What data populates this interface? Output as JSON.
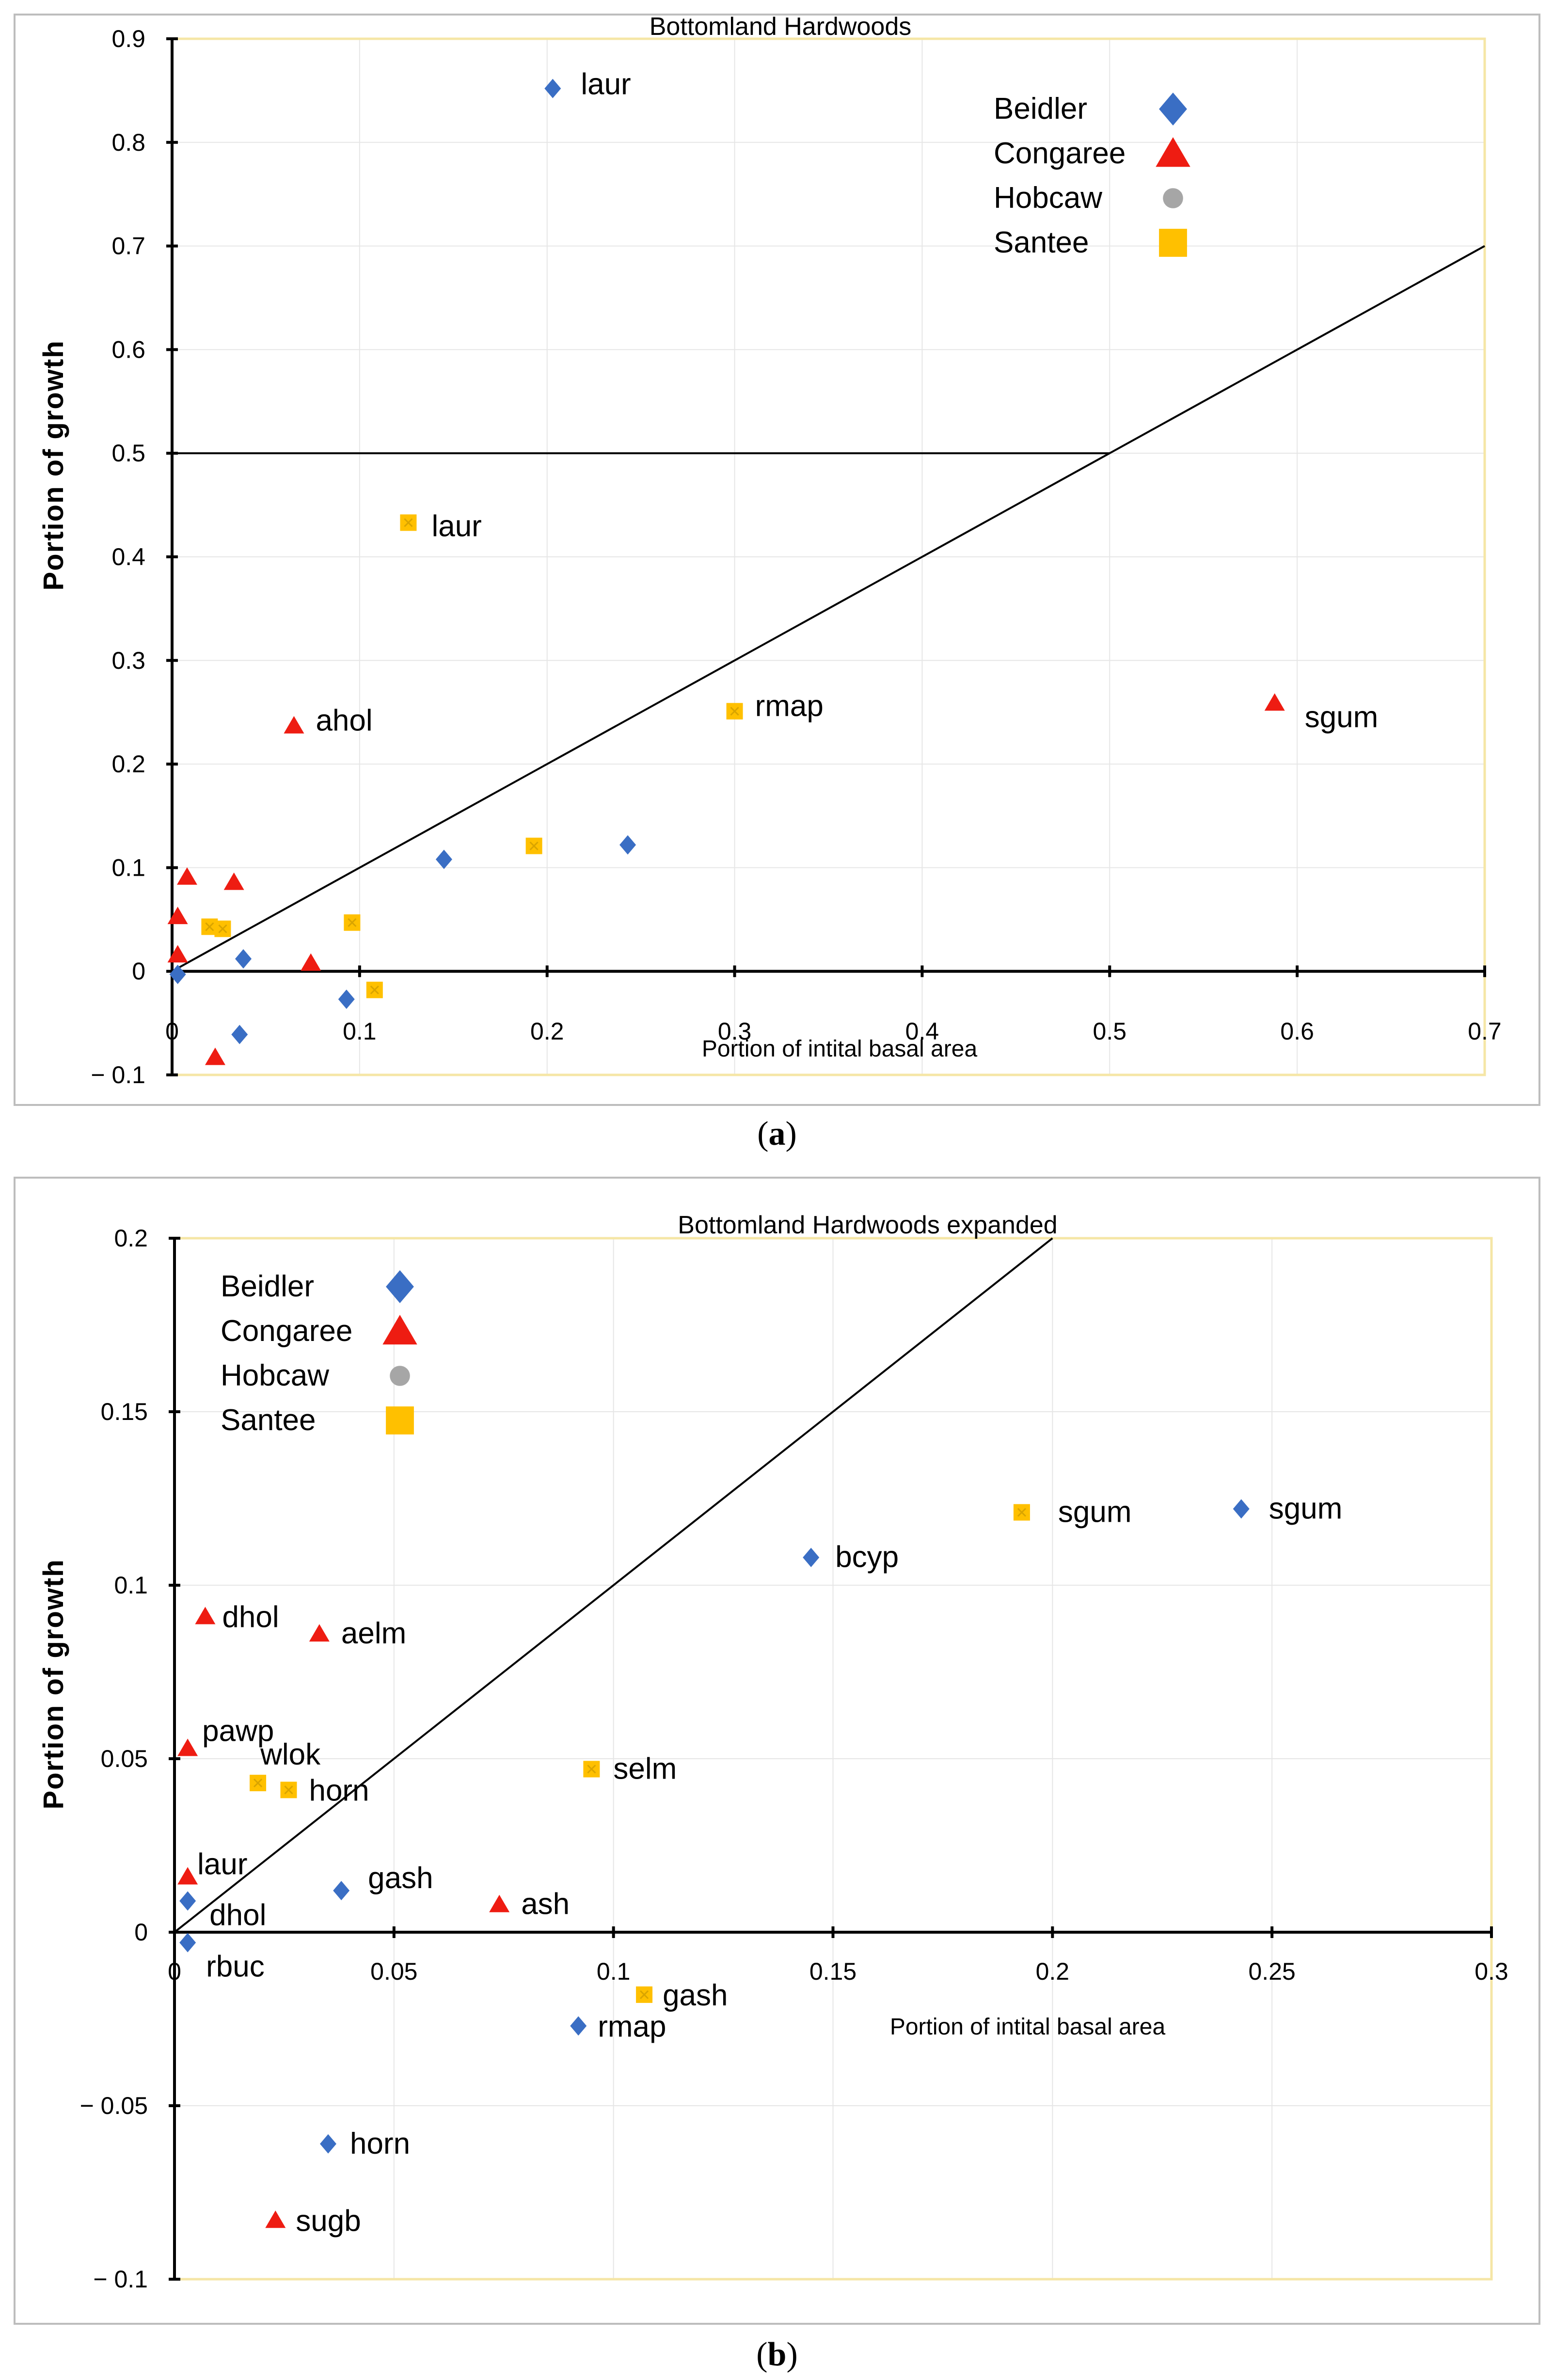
{
  "colors": {
    "Beidler": "#3a6ec4",
    "Congaree": "#ee1c12",
    "Hobcaw": "#a6a6a6",
    "Santee": "#ffc000"
  },
  "chart_data": [
    {
      "type": "scatter",
      "title": "Bottomland Hardwoods",
      "caption_letter": "a",
      "xlabel": "Portion of intital basal area",
      "ylabel": "Portion  of  growth",
      "xlim": [
        0,
        0.7
      ],
      "ylim": [
        -0.1,
        0.9
      ],
      "x_ticks": [
        0,
        0.1,
        0.2,
        0.3,
        0.4,
        0.5,
        0.6,
        0.7
      ],
      "x_tick_labels": [
        "0",
        "0.1",
        "0.2",
        "0.3",
        "0.4",
        "0.5",
        "0.6",
        "0.7"
      ],
      "y_ticks": [
        -0.1,
        0,
        0.1,
        0.2,
        0.3,
        0.4,
        0.5,
        0.6,
        0.7,
        0.8,
        0.9
      ],
      "y_tick_labels": [
        "− 0.1",
        "0",
        "0.1",
        "0.2",
        "0.3",
        "0.4",
        "0.5",
        "0.6",
        "0.7",
        "0.8",
        "0.9"
      ],
      "grid": true,
      "legend": [
        "Beidler",
        "Congaree",
        "Hobcaw",
        "Santee"
      ],
      "legend_position": "top-right",
      "reference_lines": [
        {
          "name": "one-to-one",
          "points": [
            [
              0,
              0
            ],
            [
              0.7,
              0.7
            ]
          ]
        },
        {
          "name": "half-line",
          "points": [
            [
              0,
              0.5
            ],
            [
              0.5,
              0.5
            ]
          ]
        }
      ],
      "series": [
        {
          "name": "Beidler",
          "marker": "diamond",
          "points": [
            {
              "x": 0.203,
              "y": 0.852,
              "label": "laur"
            },
            {
              "x": 0.145,
              "y": 0.108
            },
            {
              "x": 0.243,
              "y": 0.122
            },
            {
              "x": 0.038,
              "y": 0.012
            },
            {
              "x": 0.003,
              "y": -0.003
            },
            {
              "x": 0.093,
              "y": -0.027
            },
            {
              "x": 0.036,
              "y": -0.061
            }
          ]
        },
        {
          "name": "Congaree",
          "marker": "triangle",
          "points": [
            {
              "x": 0.065,
              "y": 0.237,
              "label": "ahol"
            },
            {
              "x": 0.588,
              "y": 0.259,
              "label": "sgum"
            },
            {
              "x": 0.008,
              "y": 0.091
            },
            {
              "x": 0.033,
              "y": 0.086
            },
            {
              "x": 0.003,
              "y": 0.053
            },
            {
              "x": 0.003,
              "y": 0.016
            },
            {
              "x": 0.074,
              "y": 0.008
            },
            {
              "x": 0.023,
              "y": -0.083
            }
          ]
        },
        {
          "name": "Santee",
          "marker": "square",
          "points": [
            {
              "x": 0.126,
              "y": 0.433,
              "label": "laur"
            },
            {
              "x": 0.3,
              "y": 0.251,
              "label": "rmap"
            },
            {
              "x": 0.193,
              "y": 0.121
            },
            {
              "x": 0.096,
              "y": 0.047
            },
            {
              "x": 0.02,
              "y": 0.043
            },
            {
              "x": 0.027,
              "y": 0.041
            },
            {
              "x": 0.108,
              "y": -0.018
            }
          ]
        },
        {
          "name": "Hobcaw",
          "marker": "circle",
          "points": []
        }
      ]
    },
    {
      "type": "scatter",
      "title": "Bottomland Hardwoods    expanded",
      "caption_letter": "b",
      "xlabel": "Portion of intital basal area",
      "ylabel": "Portion  of  growth",
      "xlim": [
        0,
        0.3
      ],
      "ylim": [
        -0.1,
        0.2
      ],
      "x_ticks": [
        0,
        0.05,
        0.1,
        0.15,
        0.2,
        0.25,
        0.3
      ],
      "x_tick_labels": [
        "0",
        "0.05",
        "0.1",
        "0.15",
        "0.2",
        "0.25",
        "0.3"
      ],
      "y_ticks": [
        -0.1,
        -0.05,
        0,
        0.05,
        0.1,
        0.15,
        0.2
      ],
      "y_tick_labels": [
        "− 0.1",
        "− 0.05",
        "0",
        "0.05",
        "0.1",
        "0.15",
        "0.2"
      ],
      "grid": true,
      "legend": [
        "Beidler",
        "Congaree",
        "Hobcaw",
        "Santee"
      ],
      "legend_position": "top-left",
      "reference_lines": [
        {
          "name": "one-to-one",
          "points": [
            [
              0,
              0
            ],
            [
              0.2,
              0.2
            ]
          ]
        }
      ],
      "series": [
        {
          "name": "Beidler",
          "marker": "diamond",
          "points": [
            {
              "x": 0.145,
              "y": 0.108,
              "label": "bcyp"
            },
            {
              "x": 0.243,
              "y": 0.122,
              "label": "sgum"
            },
            {
              "x": 0.038,
              "y": 0.012,
              "label": "gash"
            },
            {
              "x": 0.003,
              "y": 0.009,
              "label": "dhol"
            },
            {
              "x": 0.003,
              "y": -0.003,
              "label": "rbuc"
            },
            {
              "x": 0.092,
              "y": -0.027,
              "label": "rmap"
            },
            {
              "x": 0.035,
              "y": -0.061,
              "label": "horn"
            }
          ]
        },
        {
          "name": "Congaree",
          "marker": "triangle",
          "points": [
            {
              "x": 0.007,
              "y": 0.091,
              "label": "dhol"
            },
            {
              "x": 0.033,
              "y": 0.086,
              "label": "aelm"
            },
            {
              "x": 0.003,
              "y": 0.053,
              "label": "pawp"
            },
            {
              "x": 0.003,
              "y": 0.016,
              "label": "laur"
            },
            {
              "x": 0.074,
              "y": 0.008,
              "label": "ash"
            },
            {
              "x": 0.023,
              "y": -0.083,
              "label": "sugb"
            }
          ]
        },
        {
          "name": "Santee",
          "marker": "square",
          "points": [
            {
              "x": 0.193,
              "y": 0.121,
              "label": "sgum"
            },
            {
              "x": 0.095,
              "y": 0.047,
              "label": "selm"
            },
            {
              "x": 0.019,
              "y": 0.043,
              "label": "wlok"
            },
            {
              "x": 0.026,
              "y": 0.041,
              "label": "horn"
            },
            {
              "x": 0.107,
              "y": -0.018,
              "label": "gash"
            }
          ]
        },
        {
          "name": "Hobcaw",
          "marker": "circle",
          "points": []
        }
      ]
    }
  ]
}
